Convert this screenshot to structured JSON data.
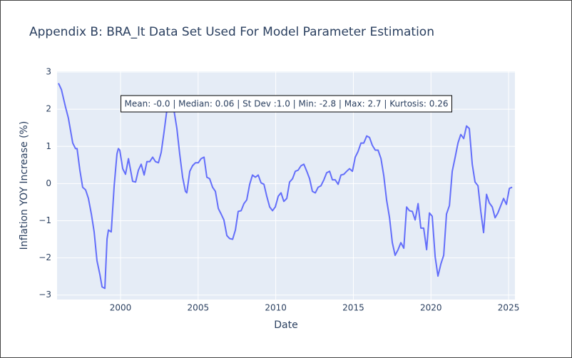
{
  "chart_data": {
    "type": "line",
    "title": "Appendix B: BRA_lt Data Set Used For Model Parameter Estimation",
    "x_label": "Date",
    "y_label": "Inflation YOY Increase (%)",
    "annotation": "Mean: -0.0 | Median: 0.06 | St Dev :1.0 | Min: -2.8 | Max: 2.7 | Kurtosis: 0.26",
    "color": "#636efa",
    "grid": true,
    "xlim": [
      1995.91,
      2025.41
    ],
    "xticks": [
      2000,
      2005,
      2010,
      2015,
      2020,
      2025
    ],
    "ylim": [
      -3.12,
      3.02
    ],
    "yticks": [
      {
        "value": -3,
        "label": "−3"
      },
      {
        "value": -2,
        "label": "−2"
      },
      {
        "value": -1,
        "label": "−1"
      },
      0,
      1,
      2,
      3
    ],
    "x": [
      1996.0,
      1996.19,
      1996.46,
      1996.64,
      1996.92,
      1997.1,
      1997.2,
      1997.38,
      1997.56,
      1997.75,
      1997.93,
      1998.12,
      1998.3,
      1998.48,
      1998.67,
      1998.81,
      1998.99,
      1999.13,
      1999.22,
      1999.4,
      1999.59,
      1999.77,
      1999.86,
      1999.95,
      2000.14,
      2000.32,
      2000.51,
      2000.78,
      2000.97,
      2001.15,
      2001.33,
      2001.52,
      2001.7,
      2001.88,
      2002.07,
      2002.25,
      2002.44,
      2002.62,
      2002.8,
      2002.99,
      2003.08,
      2003.26,
      2003.45,
      2003.63,
      2003.81,
      2004.0,
      2004.18,
      2004.27,
      2004.46,
      2004.64,
      2004.83,
      2005.01,
      2005.19,
      2005.38,
      2005.56,
      2005.74,
      2005.93,
      2006.11,
      2006.3,
      2006.48,
      2006.66,
      2006.85,
      2007.03,
      2007.22,
      2007.4,
      2007.58,
      2007.77,
      2007.95,
      2008.13,
      2008.32,
      2008.5,
      2008.69,
      2008.87,
      2009.05,
      2009.24,
      2009.42,
      2009.61,
      2009.79,
      2009.97,
      2010.16,
      2010.34,
      2010.52,
      2010.71,
      2010.89,
      2011.08,
      2011.26,
      2011.44,
      2011.63,
      2011.81,
      2012.0,
      2012.18,
      2012.36,
      2012.55,
      2012.73,
      2012.91,
      2013.1,
      2013.28,
      2013.47,
      2013.65,
      2013.83,
      2014.02,
      2014.2,
      2014.39,
      2014.57,
      2014.75,
      2014.94,
      2015.12,
      2015.3,
      2015.49,
      2015.67,
      2015.86,
      2016.04,
      2016.22,
      2016.41,
      2016.59,
      2016.78,
      2016.96,
      2017.14,
      2017.33,
      2017.51,
      2017.69,
      2017.88,
      2018.06,
      2018.25,
      2018.43,
      2018.61,
      2018.8,
      2018.98,
      2019.17,
      2019.35,
      2019.53,
      2019.72,
      2019.9,
      2020.08,
      2020.27,
      2020.45,
      2020.64,
      2020.82,
      2021.0,
      2021.19,
      2021.37,
      2021.56,
      2021.74,
      2021.92,
      2022.11,
      2022.29,
      2022.47,
      2022.66,
      2022.84,
      2023.03,
      2023.21,
      2023.39,
      2023.58,
      2023.76,
      2023.95,
      2024.13,
      2024.31,
      2024.5,
      2024.68,
      2024.86,
      2025.05,
      2025.23
    ],
    "values": [
      2.7,
      2.53,
      2.05,
      1.76,
      1.09,
      0.94,
      0.94,
      0.36,
      -0.1,
      -0.17,
      -0.4,
      -0.82,
      -1.3,
      -2.07,
      -2.45,
      -2.78,
      -2.82,
      -1.49,
      -1.25,
      -1.3,
      -0.06,
      0.8,
      0.94,
      0.9,
      0.4,
      0.25,
      0.67,
      0.06,
      0.04,
      0.36,
      0.52,
      0.23,
      0.59,
      0.59,
      0.71,
      0.59,
      0.56,
      0.84,
      1.38,
      1.99,
      2.09,
      2.05,
      1.95,
      1.48,
      0.8,
      0.17,
      -0.21,
      -0.25,
      0.33,
      0.48,
      0.56,
      0.56,
      0.67,
      0.71,
      0.17,
      0.13,
      -0.1,
      -0.21,
      -0.67,
      -0.82,
      -0.98,
      -1.4,
      -1.48,
      -1.5,
      -1.25,
      -0.75,
      -0.73,
      -0.54,
      -0.44,
      -0.02,
      0.23,
      0.17,
      0.23,
      0.02,
      -0.02,
      -0.34,
      -0.63,
      -0.73,
      -0.63,
      -0.34,
      -0.25,
      -0.48,
      -0.4,
      0.04,
      0.13,
      0.33,
      0.36,
      0.48,
      0.52,
      0.33,
      0.13,
      -0.21,
      -0.25,
      -0.1,
      -0.06,
      0.1,
      0.29,
      0.33,
      0.1,
      0.1,
      -0.02,
      0.23,
      0.25,
      0.33,
      0.4,
      0.33,
      0.71,
      0.86,
      1.09,
      1.09,
      1.28,
      1.24,
      1.03,
      0.9,
      0.9,
      0.67,
      0.21,
      -0.44,
      -0.92,
      -1.59,
      -1.93,
      -1.78,
      -1.59,
      -1.74,
      -0.63,
      -0.73,
      -0.75,
      -0.98,
      -0.54,
      -1.2,
      -1.2,
      -1.78,
      -0.79,
      -0.88,
      -1.97,
      -2.49,
      -2.16,
      -1.93,
      -0.82,
      -0.59,
      0.33,
      0.71,
      1.09,
      1.32,
      1.21,
      1.55,
      1.48,
      0.52,
      0.04,
      -0.06,
      -0.75,
      -1.32,
      -0.29,
      -0.52,
      -0.63,
      -0.92,
      -0.79,
      -0.59,
      -0.4,
      -0.56,
      -0.13,
      -0.1
    ]
  }
}
